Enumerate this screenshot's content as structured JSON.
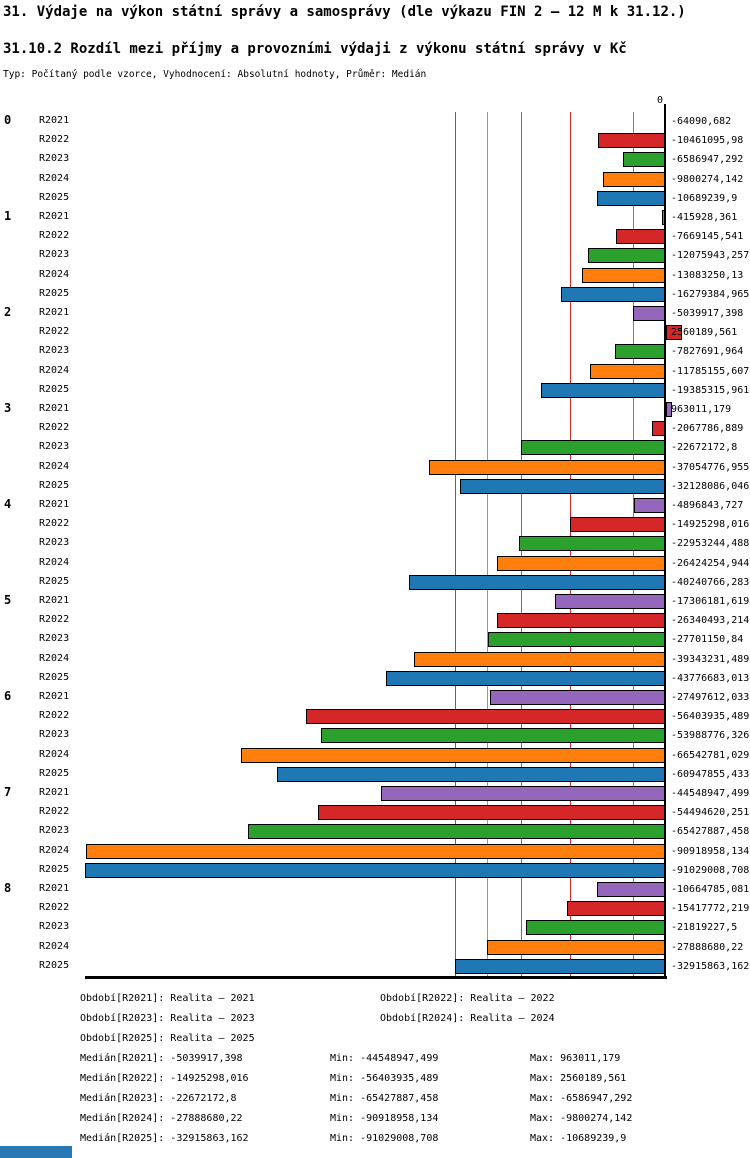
{
  "header": {
    "title": "31. Výdaje na výkon státní správy a samosprávy (dle výkazu FIN 2 – 12 M k 31.12.)",
    "subtitle": "31.10.2 Rozdíl mezi příjmy a provozními výdaji z výkonu státní správy v Kč",
    "type_line": "Typ: Počítaný podle vzorce, Vyhodnocení: Absolutní hodnoty, Průměr: Medián"
  },
  "chart_data": {
    "type": "bar",
    "orientation": "horizontal",
    "unit": "Kč",
    "axis_zero_label": "0",
    "xlim": [
      -91029008.708,
      2560189.561
    ],
    "grid": false,
    "series": [
      {
        "name": "R2021",
        "color": "#9467bd",
        "median": -5039917.398,
        "min": -44548947.499,
        "max": 963011.179
      },
      {
        "name": "R2022",
        "color": "#d62728",
        "median": -14925298.016,
        "min": -56403935.489,
        "max": 2560189.561
      },
      {
        "name": "R2023",
        "color": "#2ca02c",
        "median": -22672172.8,
        "min": -65427887.458,
        "max": -6586947.292
      },
      {
        "name": "R2024",
        "color": "#ff7f0e",
        "median": -27888680.22,
        "min": -90918958.134,
        "max": -9800274.142
      },
      {
        "name": "R2025",
        "color": "#1f77b4",
        "median": -32915863.162,
        "min": -91029008.708,
        "max": -10689239.9
      }
    ],
    "groups": [
      {
        "label": "0",
        "values": [
          -64090.682,
          -10461095.98,
          -6586947.292,
          -9800274.142,
          -10689239.9
        ],
        "value_labels": [
          "-64090,682",
          "-10461095,98",
          "-6586947,292",
          "-9800274,142",
          "-10689239,9"
        ]
      },
      {
        "label": "1",
        "values": [
          -415928.361,
          -7669145.541,
          -12075943.257,
          -13083250.13,
          -16279384.965
        ],
        "value_labels": [
          "-415928,361",
          "-7669145,541",
          "-12075943,257",
          "-13083250,13",
          "-16279384,965"
        ]
      },
      {
        "label": "2",
        "values": [
          -5039917.398,
          2560189.561,
          -7827691.964,
          -11785155.607,
          -19385315.961
        ],
        "value_labels": [
          "-5039917,398",
          "2560189,561",
          "-7827691,964",
          "-11785155,607",
          "-19385315,961"
        ]
      },
      {
        "label": "3",
        "values": [
          963011.179,
          -2067786.889,
          -22672172.8,
          -37054776.955,
          -32128086.046
        ],
        "value_labels": [
          "963011,179",
          "-2067786,889",
          "-22672172,8",
          "-37054776,955",
          "-32128086,046"
        ]
      },
      {
        "label": "4",
        "values": [
          -4896843.727,
          -14925298.016,
          -22953244.488,
          -26424254.944,
          -40240766.283
        ],
        "value_labels": [
          "-4896843,727",
          "-14925298,016",
          "-22953244,488",
          "-26424254,944",
          "-40240766,283"
        ]
      },
      {
        "label": "5",
        "values": [
          -17306181.619,
          -26340493.214,
          -27701150.84,
          -39343231.489,
          -43776683.013
        ],
        "value_labels": [
          "-17306181,619",
          "-26340493,214",
          "-27701150,84",
          "-39343231,489",
          "-43776683,013"
        ]
      },
      {
        "label": "6",
        "values": [
          -27497612.033,
          -56403935.489,
          -53988776.326,
          -66542781.029,
          -60947855.433
        ],
        "value_labels": [
          "-27497612,033",
          "-56403935,489",
          "-53988776,326",
          "-66542781,029",
          "-60947855,433"
        ]
      },
      {
        "label": "7",
        "values": [
          -44548947.499,
          -54494620.251,
          -65427887.458,
          -90918958.134,
          -91029008.708
        ],
        "value_labels": [
          "-44548947,499",
          "-54494620,251",
          "-65427887,458",
          "-90918958,134",
          "-91029008,708"
        ]
      },
      {
        "label": "8",
        "values": [
          -10664785.081,
          -15417772.219,
          -21819227.5,
          -27888680.22,
          -32915863.162
        ],
        "value_labels": [
          "-10664785,081",
          "-15417772,219",
          "-21819227,5",
          "-27888680,22",
          "-32915863,162"
        ]
      }
    ]
  },
  "legend": {
    "periods": [
      "Období[R2021]: Realita – 2021",
      "Období[R2022]: Realita – 2022",
      "Období[R2023]: Realita – 2023",
      "Období[R2024]: Realita – 2024",
      "Období[R2025]: Realita – 2025"
    ],
    "stats": [
      [
        "Medián[R2021]: -5039917,398",
        "Min: -44548947,499",
        "Max: 963011,179"
      ],
      [
        "Medián[R2022]: -14925298,016",
        "Min: -56403935,489",
        "Max: 2560189,561"
      ],
      [
        "Medián[R2023]: -22672172,8",
        "Min: -65427887,458",
        "Max: -6586947,292"
      ],
      [
        "Medián[R2024]: -27888680,22",
        "Min: -90918958,134",
        "Max: -9800274,142"
      ],
      [
        "Medián[R2025]: -32915863,162",
        "Min: -91029008,708",
        "Max: -10689239,9"
      ]
    ]
  },
  "accents": {
    "bottom_left_block": "#2878b5"
  }
}
